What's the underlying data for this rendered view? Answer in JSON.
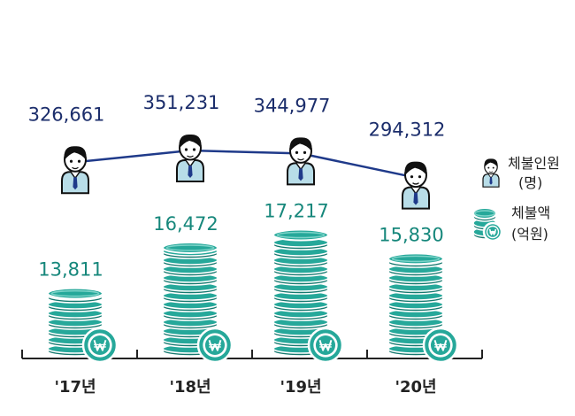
{
  "chart_data": {
    "type": "bar+line",
    "categories": [
      "'17년",
      "'18년",
      "'19년",
      "'20년"
    ],
    "series": [
      {
        "name": "체불인원 (명)",
        "type": "line",
        "values": [
          326661,
          351231,
          344977,
          294312
        ],
        "labels": [
          "326,661",
          "351,231",
          "344,977",
          "294,312"
        ]
      },
      {
        "name": "체불액 (억원)",
        "type": "bar",
        "values": [
          13811,
          16472,
          17217,
          15830
        ],
        "labels": [
          "13,811",
          "16,472",
          "17,217",
          "15,830"
        ]
      }
    ],
    "legend": {
      "position": "right",
      "items": [
        {
          "icon": "person-icon",
          "line1": "체불인원",
          "line2": "(명)"
        },
        {
          "icon": "coin-stack-icon",
          "line1": "체불액",
          "line2": "(억원)"
        }
      ]
    },
    "colors": {
      "line": "#1f3a8a",
      "label_navy": "#1b2d6b",
      "coin": "#26a89a",
      "coin_dark": "#15796f",
      "shirt": "#b8dde8",
      "tie": "#1f3a8a",
      "axis": "#222222"
    }
  }
}
